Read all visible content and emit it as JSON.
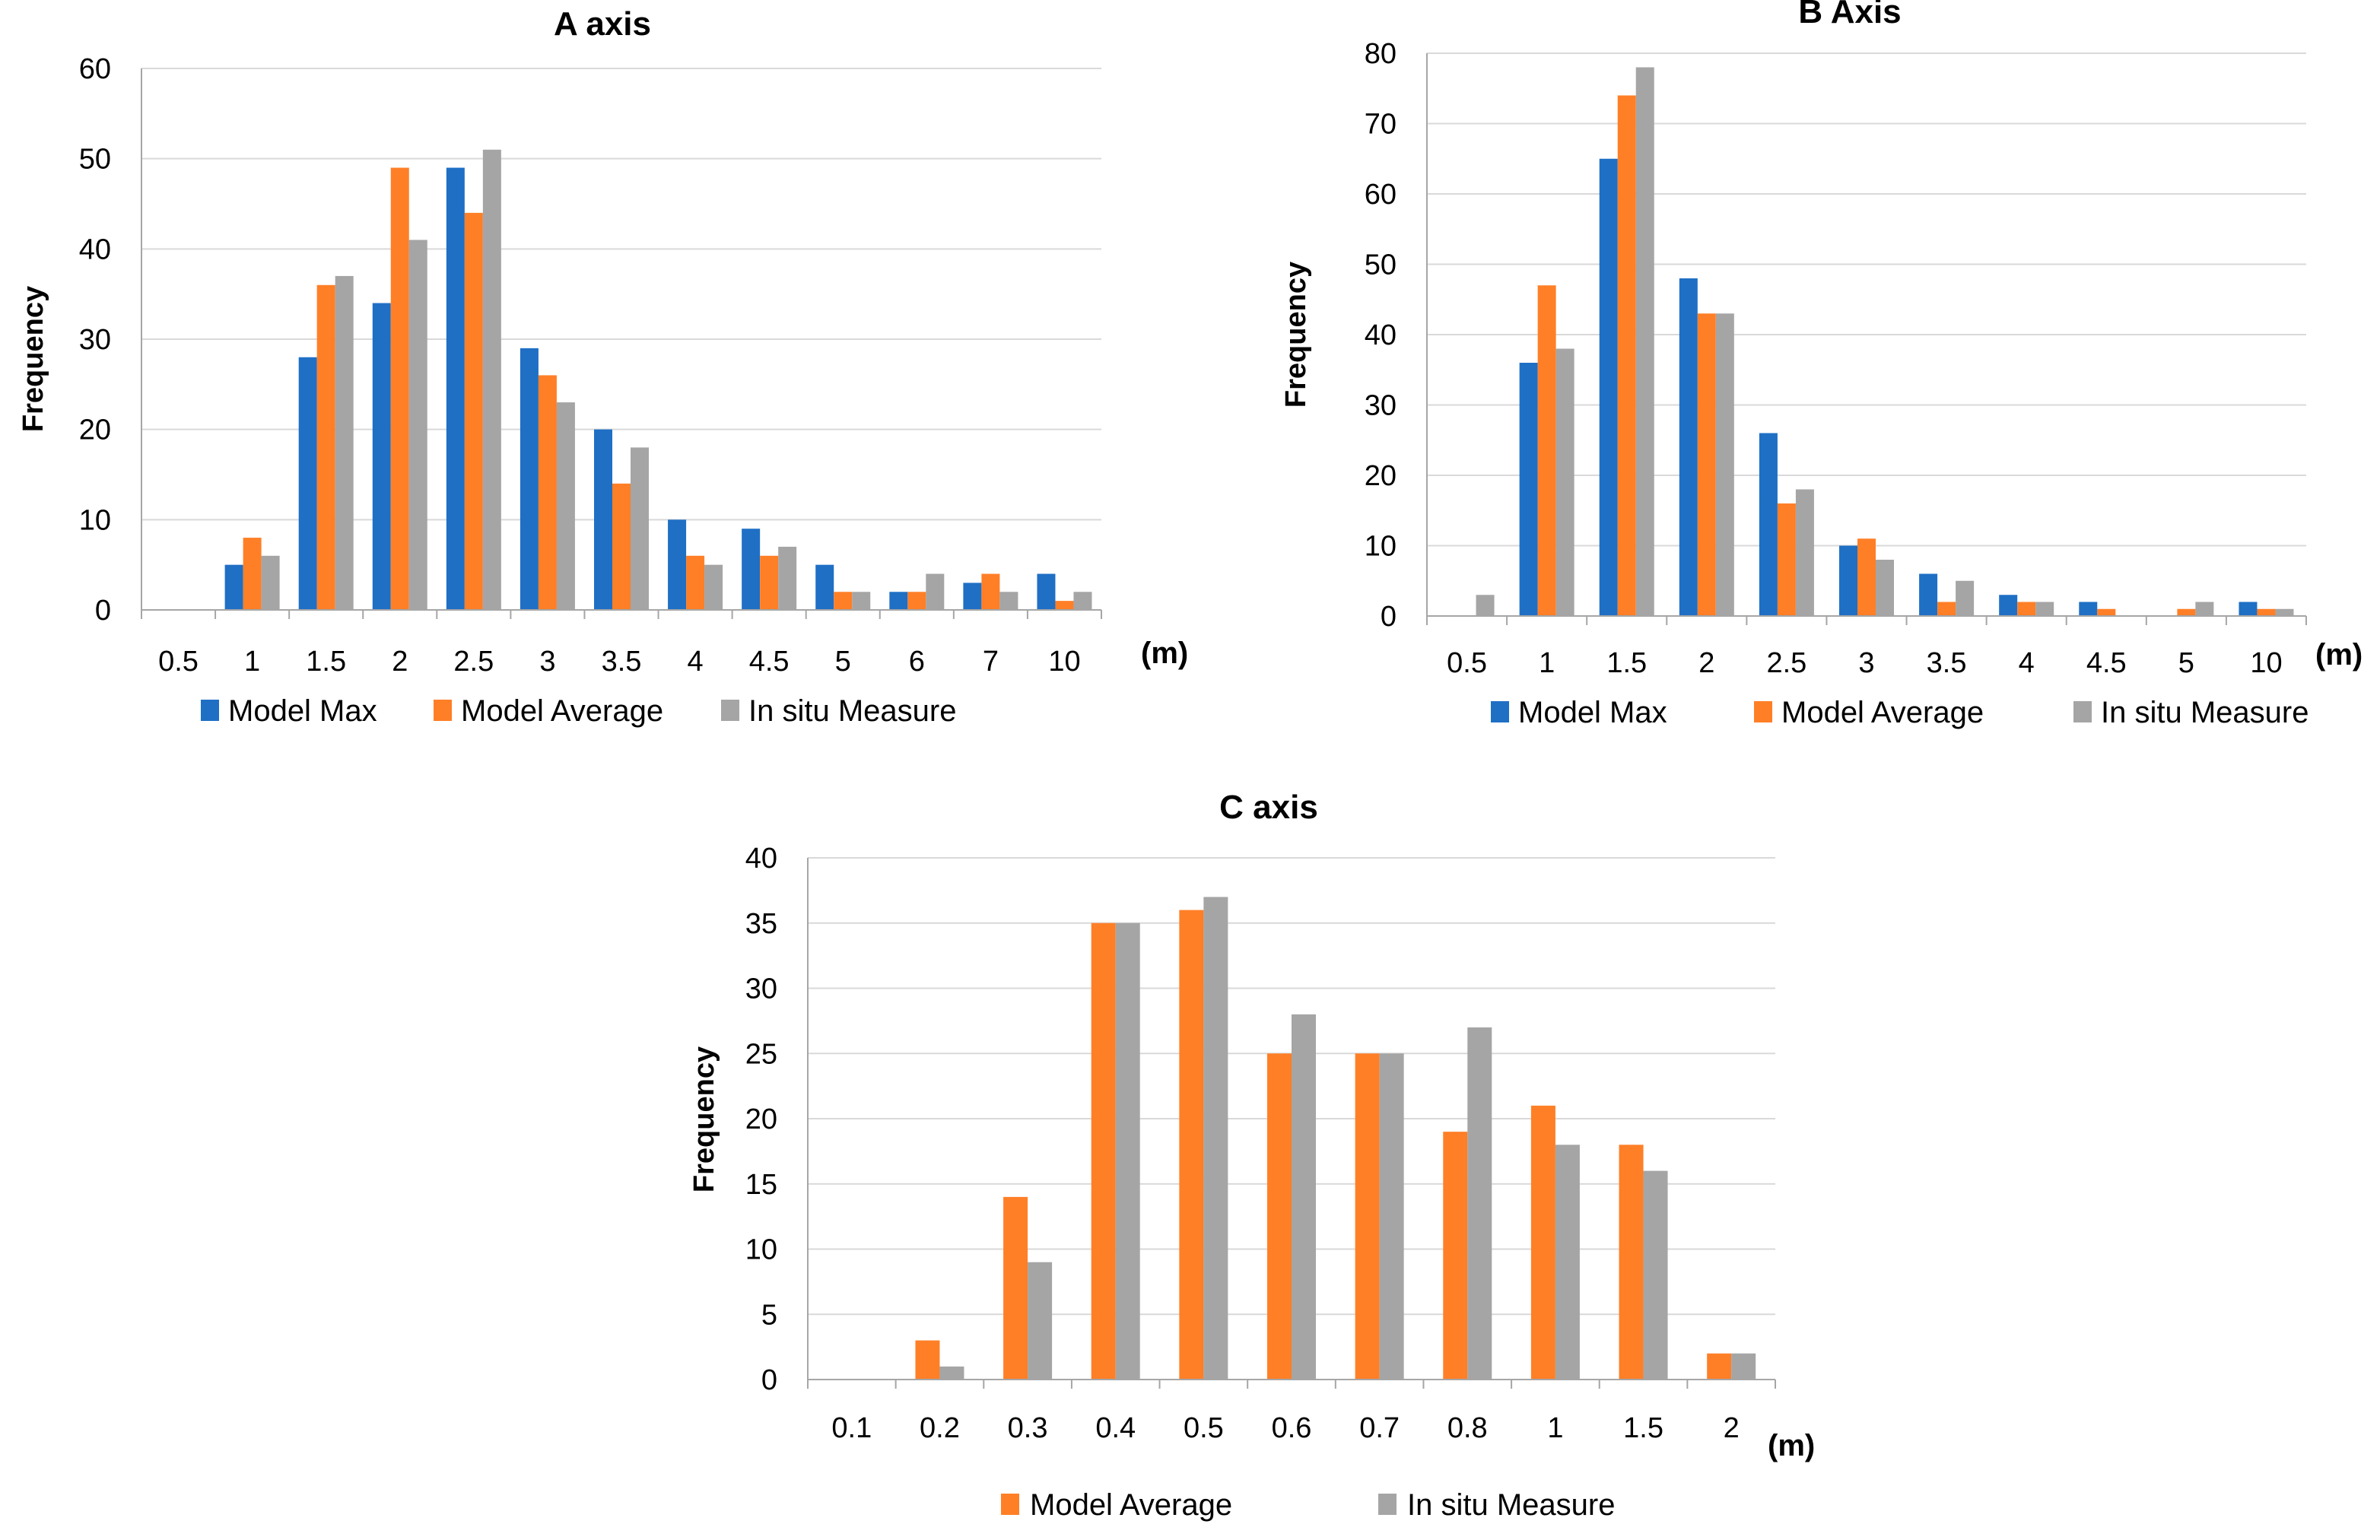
{
  "colors": {
    "model_max": "#1f6fc5",
    "model_average": "#ff7f27",
    "in_situ": "#a5a5a5"
  },
  "chart_data": [
    {
      "id": "a",
      "type": "bar",
      "title": "A axis",
      "ylabel": "Frequency",
      "xunit": "(m)",
      "ylim": [
        0,
        60
      ],
      "yticks": [
        0,
        10,
        20,
        30,
        40,
        50,
        60
      ],
      "categories": [
        "0.5",
        "1",
        "1.5",
        "2",
        "2.5",
        "3",
        "3.5",
        "4",
        "4.5",
        "5",
        "6",
        "7",
        "10"
      ],
      "series": [
        {
          "name": "Model Max",
          "color": "#1f6fc5",
          "values": [
            0,
            5,
            28,
            34,
            49,
            29,
            20,
            10,
            9,
            5,
            2,
            3,
            4
          ]
        },
        {
          "name": "Model Average",
          "color": "#ff7f27",
          "values": [
            0,
            8,
            36,
            49,
            44,
            26,
            14,
            6,
            6,
            2,
            2,
            4,
            1
          ]
        },
        {
          "name": "In situ Measure",
          "color": "#a5a5a5",
          "values": [
            0,
            6,
            37,
            41,
            51,
            23,
            18,
            5,
            7,
            2,
            4,
            2,
            2
          ]
        }
      ]
    },
    {
      "id": "b",
      "type": "bar",
      "title": "B Axis",
      "ylabel": "Frequency",
      "xunit": "(m)",
      "ylim": [
        0,
        80
      ],
      "yticks": [
        0,
        10,
        20,
        30,
        40,
        50,
        60,
        70,
        80
      ],
      "categories": [
        "0.5",
        "1",
        "1.5",
        "2",
        "2.5",
        "3",
        "3.5",
        "4",
        "4.5",
        "5",
        "10"
      ],
      "series": [
        {
          "name": "Model Max",
          "color": "#1f6fc5",
          "values": [
            0,
            36,
            65,
            48,
            26,
            10,
            6,
            3,
            2,
            0,
            2
          ]
        },
        {
          "name": "Model Average",
          "color": "#ff7f27",
          "values": [
            0,
            47,
            74,
            43,
            16,
            11,
            2,
            2,
            1,
            1,
            1
          ]
        },
        {
          "name": "In situ Measure",
          "color": "#a5a5a5",
          "values": [
            3,
            38,
            78,
            43,
            18,
            8,
            5,
            2,
            0,
            2,
            1
          ]
        }
      ]
    },
    {
      "id": "c",
      "type": "bar",
      "title": "C axis",
      "ylabel": "Frequency",
      "xunit": "(m)",
      "ylim": [
        0,
        40
      ],
      "yticks": [
        0,
        5,
        10,
        15,
        20,
        25,
        30,
        35,
        40
      ],
      "categories": [
        "0.1",
        "0.2",
        "0.3",
        "0.4",
        "0.5",
        "0.6",
        "0.7",
        "0.8",
        "1",
        "1.5",
        "2"
      ],
      "series": [
        {
          "name": "Model Average",
          "color": "#ff7f27",
          "values": [
            0,
            3,
            14,
            35,
            36,
            25,
            25,
            19,
            21,
            18,
            2
          ]
        },
        {
          "name": "In situ Measure",
          "color": "#a5a5a5",
          "values": [
            0,
            1,
            9,
            35,
            37,
            28,
            25,
            27,
            18,
            16,
            2
          ]
        }
      ]
    }
  ]
}
